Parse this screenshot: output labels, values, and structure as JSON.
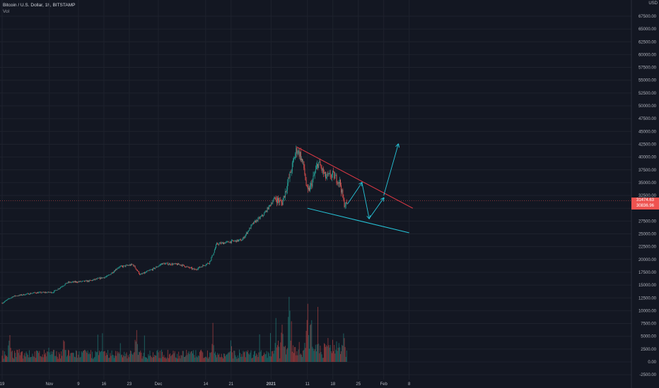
{
  "header": {
    "symbol_line": "Bitcoin / U.S. Dollar, 1h, BITSTAMP",
    "volume_label": "Vol"
  },
  "axis": {
    "currency": "USD",
    "price_ticks": [
      "67500.00",
      "65000.00",
      "62500.00",
      "60000.00",
      "57500.00",
      "55000.00",
      "52500.00",
      "50000.00",
      "47500.00",
      "45000.00",
      "42500.00",
      "40000.00",
      "37500.00",
      "35000.00",
      "32500.00",
      "30000.00",
      "27500.00",
      "25000.00",
      "22500.00",
      "20000.00",
      "17500.00",
      "15000.00",
      "12500.00",
      "10000.00",
      "7500.00",
      "5000.00",
      "2500.00",
      "0.00",
      "-2500.00"
    ],
    "time_ticks": [
      {
        "label": "19",
        "bold": false
      },
      {
        "label": "Nov",
        "bold": false
      },
      {
        "label": "9",
        "bold": false
      },
      {
        "label": "16",
        "bold": false
      },
      {
        "label": "23",
        "bold": false
      },
      {
        "label": "Dec",
        "bold": false
      },
      {
        "label": "14",
        "bold": false
      },
      {
        "label": "21",
        "bold": false
      },
      {
        "label": "2021",
        "bold": true
      },
      {
        "label": "11",
        "bold": false
      },
      {
        "label": "18",
        "bold": false
      },
      {
        "label": "25",
        "bold": false
      },
      {
        "label": "Feb",
        "bold": false
      },
      {
        "label": "8",
        "bold": false
      }
    ]
  },
  "last_price_tags": {
    "current": "31474.63",
    "secondary": "30836.96"
  },
  "colors": {
    "background": "#131722",
    "up": "#26a69a",
    "down": "#ef5350",
    "resistance_line": "#e53946",
    "support_line": "#26c6da",
    "arrow": "#26c6da",
    "grid": "#1e222d"
  },
  "chart_data": {
    "type": "candlestick",
    "symbol": "Bitcoin / U.S. Dollar",
    "interval": "1h",
    "exchange": "BITSTAMP",
    "price_range": [
      -2500,
      70000
    ],
    "y_scale": "linear",
    "grid": true,
    "price_path": [
      {
        "date": "2020-10-19",
        "price": 11500
      },
      {
        "date": "2020-10-22",
        "price": 12800
      },
      {
        "date": "2020-10-28",
        "price": 13500
      },
      {
        "date": "2020-11-02",
        "price": 13600
      },
      {
        "date": "2020-11-06",
        "price": 15500
      },
      {
        "date": "2020-11-12",
        "price": 15800
      },
      {
        "date": "2020-11-17",
        "price": 16700
      },
      {
        "date": "2020-11-20",
        "price": 18500
      },
      {
        "date": "2020-11-24",
        "price": 19000
      },
      {
        "date": "2020-11-26",
        "price": 17000
      },
      {
        "date": "2020-11-30",
        "price": 18300
      },
      {
        "date": "2020-12-02",
        "price": 19200
      },
      {
        "date": "2020-12-07",
        "price": 19000
      },
      {
        "date": "2020-12-11",
        "price": 18000
      },
      {
        "date": "2020-12-15",
        "price": 19400
      },
      {
        "date": "2020-12-16",
        "price": 21000
      },
      {
        "date": "2020-12-17",
        "price": 23000
      },
      {
        "date": "2020-12-21",
        "price": 23500
      },
      {
        "date": "2020-12-24",
        "price": 23800
      },
      {
        "date": "2020-12-27",
        "price": 27000
      },
      {
        "date": "2020-12-30",
        "price": 28800
      },
      {
        "date": "2021-01-02",
        "price": 32000
      },
      {
        "date": "2021-01-04",
        "price": 31000
      },
      {
        "date": "2021-01-06",
        "price": 36000
      },
      {
        "date": "2021-01-08",
        "price": 41500
      },
      {
        "date": "2021-01-09",
        "price": 40500
      },
      {
        "date": "2021-01-10",
        "price": 38000
      },
      {
        "date": "2021-01-11",
        "price": 33000
      },
      {
        "date": "2021-01-12",
        "price": 34500
      },
      {
        "date": "2021-01-14",
        "price": 39000
      },
      {
        "date": "2021-01-16",
        "price": 36000
      },
      {
        "date": "2021-01-18",
        "price": 36500
      },
      {
        "date": "2021-01-20",
        "price": 35000
      },
      {
        "date": "2021-01-21",
        "price": 31000
      },
      {
        "date": "2021-01-22",
        "price": 30500
      }
    ],
    "volume_peaks": [
      {
        "date": "2020-10-21",
        "volume": 7500
      },
      {
        "date": "2020-11-05",
        "volume": 6000
      },
      {
        "date": "2020-11-25",
        "volume": 6500
      },
      {
        "date": "2020-12-16",
        "volume": 8500
      },
      {
        "date": "2020-12-21",
        "volume": 6000
      },
      {
        "date": "2021-01-04",
        "volume": 12000
      },
      {
        "date": "2021-01-06",
        "volume": 15500
      },
      {
        "date": "2021-01-11",
        "volume": 15000
      },
      {
        "date": "2021-01-12",
        "volume": 13000
      },
      {
        "date": "2021-01-21",
        "volume": 7000
      }
    ],
    "annotations": [
      {
        "type": "trendline",
        "role": "resistance",
        "from": {
          "date": "2021-01-08",
          "price": 42000
        },
        "to": {
          "date": "2021-02-09",
          "price": 30000
        }
      },
      {
        "type": "trendline",
        "role": "support",
        "from": {
          "date": "2021-01-11",
          "price": 30000
        },
        "to": {
          "date": "2021-02-08",
          "price": 25200
        }
      },
      {
        "type": "arrow",
        "from": {
          "date": "2021-01-22",
          "price": 30800
        },
        "to": {
          "date": "2021-01-26",
          "price": 35000
        }
      },
      {
        "type": "arrow",
        "from": {
          "date": "2021-01-26",
          "price": 35000
        },
        "to": {
          "date": "2021-01-28",
          "price": 28000
        }
      },
      {
        "type": "arrow",
        "from": {
          "date": "2021-01-28",
          "price": 28000
        },
        "to": {
          "date": "2021-02-01",
          "price": 32000
        }
      },
      {
        "type": "arrow",
        "from": {
          "date": "2021-02-01",
          "price": 32500
        },
        "to": {
          "date": "2021-02-05",
          "price": 42500
        }
      }
    ]
  }
}
